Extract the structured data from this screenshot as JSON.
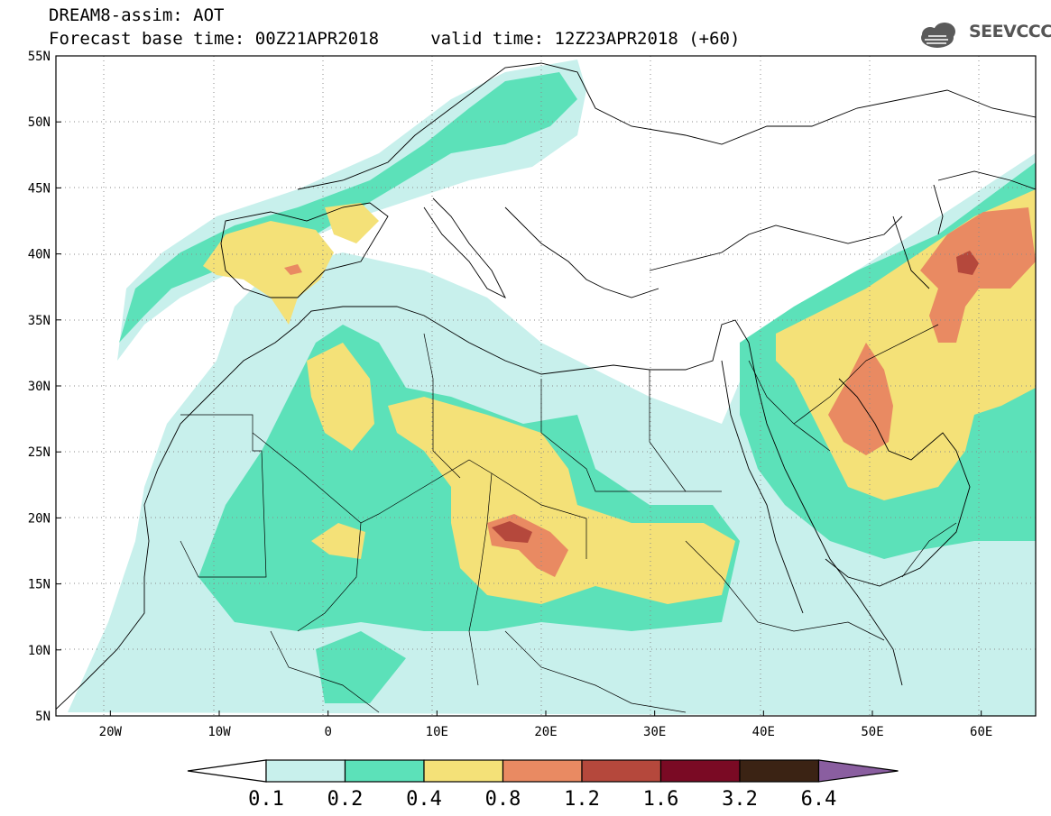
{
  "header": {
    "line1": "DREAM8-assim: AOT",
    "line2": "Forecast base time: 00Z21APR2018     valid time: 12Z23APR2018 (+60)"
  },
  "logo": {
    "text": "SEEVCCC",
    "icon": "cloud-icon"
  },
  "map": {
    "lat_labels": [
      "55N",
      "50N",
      "45N",
      "40N",
      "35N",
      "30N",
      "25N",
      "20N",
      "15N",
      "10N",
      "5N"
    ],
    "lon_labels": [
      "20W",
      "10W",
      "0",
      "10E",
      "20E",
      "30E",
      "40E",
      "50E",
      "60E"
    ],
    "lat_range": [
      5,
      55
    ],
    "lon_range": [
      -25,
      65
    ],
    "grid": "dotted"
  },
  "colorbar": {
    "labels": [
      "0.1",
      "0.2",
      "0.4",
      "0.8",
      "1.2",
      "1.6",
      "3.2",
      "6.4"
    ],
    "colors": [
      "#ffffff",
      "#c8f0ec",
      "#5ce1b9",
      "#f4e178",
      "#e98a62",
      "#b5483c",
      "#7a0a24",
      "#3b2314",
      "#8a5ea0"
    ]
  }
}
